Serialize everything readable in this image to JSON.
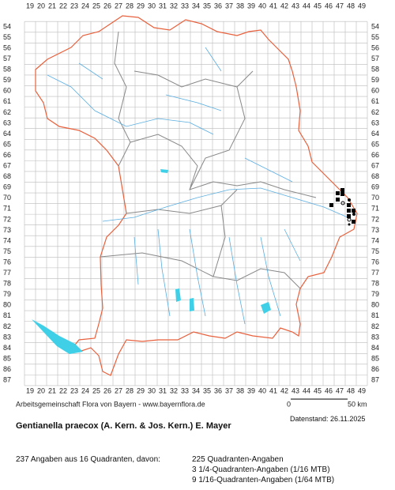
{
  "map": {
    "columns": [
      19,
      20,
      21,
      22,
      23,
      24,
      25,
      26,
      27,
      28,
      29,
      30,
      31,
      32,
      33,
      34,
      35,
      36,
      37,
      38,
      39,
      40,
      41,
      42,
      43,
      44,
      45,
      46,
      47,
      48,
      49
    ],
    "rows": [
      54,
      55,
      56,
      57,
      58,
      59,
      60,
      61,
      62,
      63,
      64,
      65,
      66,
      67,
      68,
      69,
      70,
      71,
      72,
      73,
      74,
      75,
      76,
      77,
      78,
      79,
      80,
      81,
      82,
      83,
      84,
      85,
      86,
      87
    ],
    "credit": "Arbeitsgemeinschaft Flora von Bayern - www.bayernflora.de",
    "scale_start": "0",
    "scale_end": "50 km",
    "date": "Datenstand: 26.11.2025"
  },
  "species": "Gentianella praecox (A. Kern. & Jos. Kern.) E. Mayer",
  "stats": {
    "summary": "237 Angaben aus 16 Quadranten, davon:",
    "lines": [
      "225 Quadranten-Angaben",
      "3 1/4-Quadranten-Angaben (1/16 MTB)",
      "9 1/16-Quadranten-Angaben (1/64 MTB)"
    ]
  }
}
